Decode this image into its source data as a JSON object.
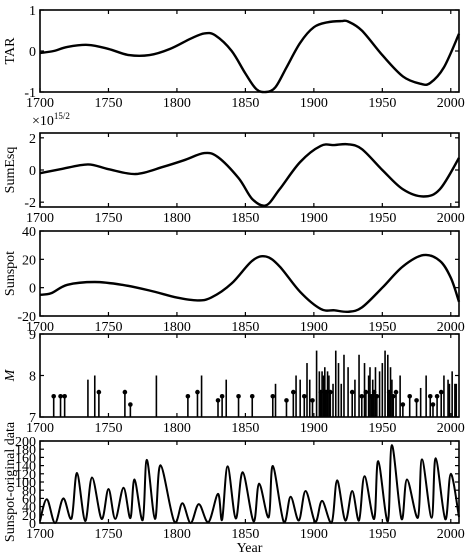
{
  "chart_data": [
    {
      "type": "line",
      "ylabel": "TAR",
      "xlabel": "",
      "xlim": [
        1700,
        2006
      ],
      "ylim": [
        -1,
        1
      ],
      "xticks": [
        "1700",
        "1750",
        "1800",
        "1850",
        "1900",
        "1950",
        "2000"
      ],
      "yticks": [
        "-1",
        "0",
        "1"
      ],
      "x": [
        1700,
        1710,
        1720,
        1735,
        1750,
        1765,
        1780,
        1795,
        1810,
        1820,
        1828,
        1840,
        1850,
        1858,
        1865,
        1872,
        1880,
        1890,
        1900,
        1910,
        1920,
        1925,
        1935,
        1950,
        1965,
        1978,
        1985,
        1995,
        2006
      ],
      "y": [
        -0.05,
        0.0,
        0.1,
        0.15,
        0.05,
        -0.1,
        -0.1,
        0.05,
        0.3,
        0.43,
        0.38,
        0.0,
        -0.55,
        -0.93,
        -1.0,
        -0.88,
        -0.4,
        0.2,
        0.58,
        0.7,
        0.73,
        0.72,
        0.5,
        -0.1,
        -0.62,
        -0.8,
        -0.78,
        -0.4,
        0.42
      ]
    },
    {
      "type": "line",
      "ylabel": "SumEsq",
      "scale_label_base": "×10",
      "scale_label_exp": "15/2",
      "xlim": [
        1700,
        2006
      ],
      "ylim": [
        -2.3,
        2.3
      ],
      "xticks": [
        "1700",
        "1750",
        "1800",
        "1850",
        "1900",
        "1950",
        "2000"
      ],
      "yticks": [
        "-2",
        "0",
        "2"
      ],
      "x": [
        1700,
        1715,
        1735,
        1750,
        1770,
        1790,
        1805,
        1820,
        1830,
        1845,
        1855,
        1865,
        1875,
        1890,
        1905,
        1915,
        1925,
        1935,
        1950,
        1965,
        1980,
        1992,
        2006
      ],
      "y": [
        -0.2,
        0.05,
        0.35,
        0.05,
        -0.25,
        0.2,
        0.6,
        1.05,
        0.8,
        -0.5,
        -1.8,
        -2.2,
        -1.2,
        0.5,
        1.5,
        1.55,
        1.6,
        1.3,
        0.0,
        -1.2,
        -1.65,
        -1.2,
        0.75
      ]
    },
    {
      "type": "line",
      "ylabel": "Sunspot",
      "xlim": [
        1700,
        2006
      ],
      "ylim": [
        -20,
        40
      ],
      "xticks": [
        "1700",
        "1750",
        "1800",
        "1850",
        "1900",
        "1950",
        "2000"
      ],
      "yticks": [
        "-20",
        "0",
        "20",
        "40"
      ],
      "x": [
        1700,
        1708,
        1720,
        1740,
        1760,
        1780,
        1800,
        1815,
        1825,
        1840,
        1855,
        1865,
        1875,
        1890,
        1905,
        1915,
        1925,
        1935,
        1950,
        1965,
        1980,
        1992,
        2000,
        2006
      ],
      "y": [
        -5,
        -4,
        2,
        4,
        2,
        -2,
        -7,
        -9,
        -7,
        3,
        19,
        22,
        15,
        -3,
        -15,
        -16,
        -17,
        -14,
        0,
        15,
        23,
        19,
        7,
        -10
      ]
    },
    {
      "type": "bar",
      "ylabel": "M",
      "xlim": [
        1700,
        2006
      ],
      "ylim": [
        7,
        9
      ],
      "xticks": [
        "1700",
        "1750",
        "1800",
        "1850",
        "1900",
        "1950",
        "2000"
      ],
      "yticks": [
        "7",
        "8",
        "9"
      ],
      "x": [
        1710,
        1715,
        1718,
        1735,
        1740,
        1743,
        1762,
        1766,
        1785,
        1808,
        1815,
        1818,
        1830,
        1833,
        1836,
        1845,
        1855,
        1870,
        1872,
        1880,
        1885,
        1887,
        1890,
        1893,
        1895,
        1897,
        1899,
        1902,
        1904,
        1905,
        1906,
        1907,
        1908,
        1909,
        1910,
        1911,
        1912,
        1914,
        1916,
        1918,
        1920,
        1922,
        1925,
        1928,
        1930,
        1933,
        1935,
        1937,
        1938,
        1940,
        1941,
        1942,
        1943,
        1944,
        1945,
        1946,
        1948,
        1950,
        1952,
        1954,
        1955,
        1956,
        1957,
        1958,
        1960,
        1963,
        1965,
        1970,
        1975,
        1978,
        1982,
        1985,
        1987,
        1990,
        1993,
        1995,
        1998,
        1999,
        2001,
        2003,
        2004
      ],
      "values": [
        7.5,
        7.5,
        7.5,
        7.9,
        8.0,
        7.6,
        7.6,
        7.3,
        8.0,
        7.5,
        7.6,
        8.0,
        7.4,
        7.5,
        7.9,
        7.5,
        7.5,
        7.5,
        7.8,
        7.4,
        7.6,
        8.0,
        7.9,
        7.5,
        8.3,
        7.9,
        7.4,
        8.6,
        8.1,
        7.6,
        8.1,
        8.0,
        8.2,
        7.6,
        8.1,
        8.0,
        7.6,
        7.8,
        8.6,
        8.3,
        7.8,
        8.5,
        8.2,
        7.6,
        7.9,
        8.5,
        7.5,
        8.3,
        7.6,
        8.0,
        8.2,
        7.5,
        7.9,
        7.6,
        8.2,
        7.5,
        8.1,
        8.3,
        8.6,
        8.5,
        7.6,
        8.2,
        7.9,
        7.5,
        7.6,
        8.0,
        7.3,
        7.5,
        7.4,
        7.7,
        8.0,
        7.5,
        7.3,
        7.5,
        7.6,
        8.0,
        7.9,
        7.8,
        8.1,
        7.8,
        7.8
      ]
    },
    {
      "type": "line",
      "ylabel": "Sunspot-original data",
      "xlabel": "Year",
      "xlim": [
        1700,
        2006
      ],
      "ylim": [
        0,
        200
      ],
      "xticks": [
        "1700",
        "1750",
        "1800",
        "1850",
        "1900",
        "1950",
        "2000"
      ],
      "yticks": [
        "0",
        "20",
        "40",
        "60",
        "80",
        "100",
        "120",
        "140",
        "160",
        "180",
        "200"
      ],
      "peaks": [
        [
          1705,
          58
        ],
        [
          1717,
          60
        ],
        [
          1727,
          122
        ],
        [
          1738,
          111
        ],
        [
          1750,
          83
        ],
        [
          1761,
          86
        ],
        [
          1769,
          106
        ],
        [
          1778,
          154
        ],
        [
          1788,
          141
        ],
        [
          1804,
          48
        ],
        [
          1816,
          46
        ],
        [
          1830,
          71
        ],
        [
          1837,
          138
        ],
        [
          1848,
          124
        ],
        [
          1860,
          96
        ],
        [
          1870,
          139
        ],
        [
          1883,
          64
        ],
        [
          1894,
          78
        ],
        [
          1906,
          54
        ],
        [
          1917,
          104
        ],
        [
          1928,
          78
        ],
        [
          1937,
          114
        ],
        [
          1947,
          151
        ],
        [
          1957,
          190
        ],
        [
          1968,
          106
        ],
        [
          1979,
          155
        ],
        [
          1989,
          158
        ],
        [
          2000,
          120
        ]
      ],
      "minima": [
        [
          1700,
          5
        ],
        [
          1711,
          0
        ],
        [
          1723,
          11
        ],
        [
          1733,
          5
        ],
        [
          1745,
          10
        ],
        [
          1755,
          10
        ],
        [
          1766,
          12
        ],
        [
          1775,
          7
        ],
        [
          1784,
          10
        ],
        [
          1798,
          4
        ],
        [
          1810,
          0
        ],
        [
          1823,
          2
        ],
        [
          1833,
          8
        ],
        [
          1843,
          11
        ],
        [
          1856,
          4
        ],
        [
          1867,
          14
        ],
        [
          1878,
          3
        ],
        [
          1889,
          6
        ],
        [
          1901,
          3
        ],
        [
          1913,
          1
        ],
        [
          1923,
          6
        ],
        [
          1933,
          6
        ],
        [
          1944,
          10
        ],
        [
          1954,
          4
        ],
        [
          1964,
          10
        ],
        [
          1976,
          13
        ],
        [
          1986,
          13
        ],
        [
          1996,
          9
        ],
        [
          2006,
          15
        ]
      ]
    }
  ]
}
